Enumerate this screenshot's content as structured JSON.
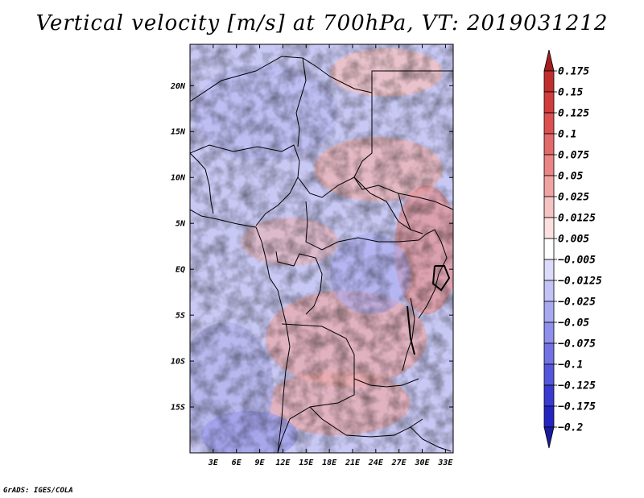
{
  "title": "Vertical velocity [m/s] at 700hPa, VT: 2019031212",
  "credit": "GrADS: IGES/COLA",
  "map": {
    "lon_labels": [
      "3E",
      "6E",
      "9E",
      "12E",
      "15E",
      "18E",
      "21E",
      "24E",
      "27E",
      "30E",
      "33E"
    ],
    "lat_labels": [
      "20N",
      "15N",
      "10N",
      "5N",
      "EQ",
      "5S",
      "10S",
      "15S"
    ],
    "lon_range": [
      0,
      34
    ],
    "lat_range": [
      -20,
      24.5
    ],
    "lon_ticks": [
      3,
      6,
      9,
      12,
      15,
      18,
      21,
      24,
      27,
      30,
      33
    ],
    "lat_ticks": [
      20,
      15,
      10,
      5,
      0,
      -5,
      -10,
      -15
    ]
  },
  "colorbar": {
    "labels": [
      "0.175",
      "0.15",
      "0.125",
      "0.1",
      "0.075",
      "0.05",
      "0.025",
      "0.0125",
      "0.005",
      "−0.005",
      "−0.0125",
      "−0.025",
      "−0.05",
      "−0.075",
      "−0.1",
      "−0.125",
      "−0.175",
      "−0.2"
    ],
    "colors": [
      "#a41e1e",
      "#c02e2e",
      "#d13c3c",
      "#dc5050",
      "#e26a6a",
      "#e98585",
      "#f0a3a3",
      "#f6c3c3",
      "#fbe0e0",
      "#ffffff",
      "#dcdcfa",
      "#c3c3f6",
      "#a9a9f2",
      "#8f8fee",
      "#7272e6",
      "#5656dc",
      "#3a3ad0",
      "#2424c0",
      "#1a1aa0"
    ]
  },
  "colors": {
    "warm": "#e46a6a",
    "cold": "#7a7ae8",
    "border": "#000000"
  }
}
